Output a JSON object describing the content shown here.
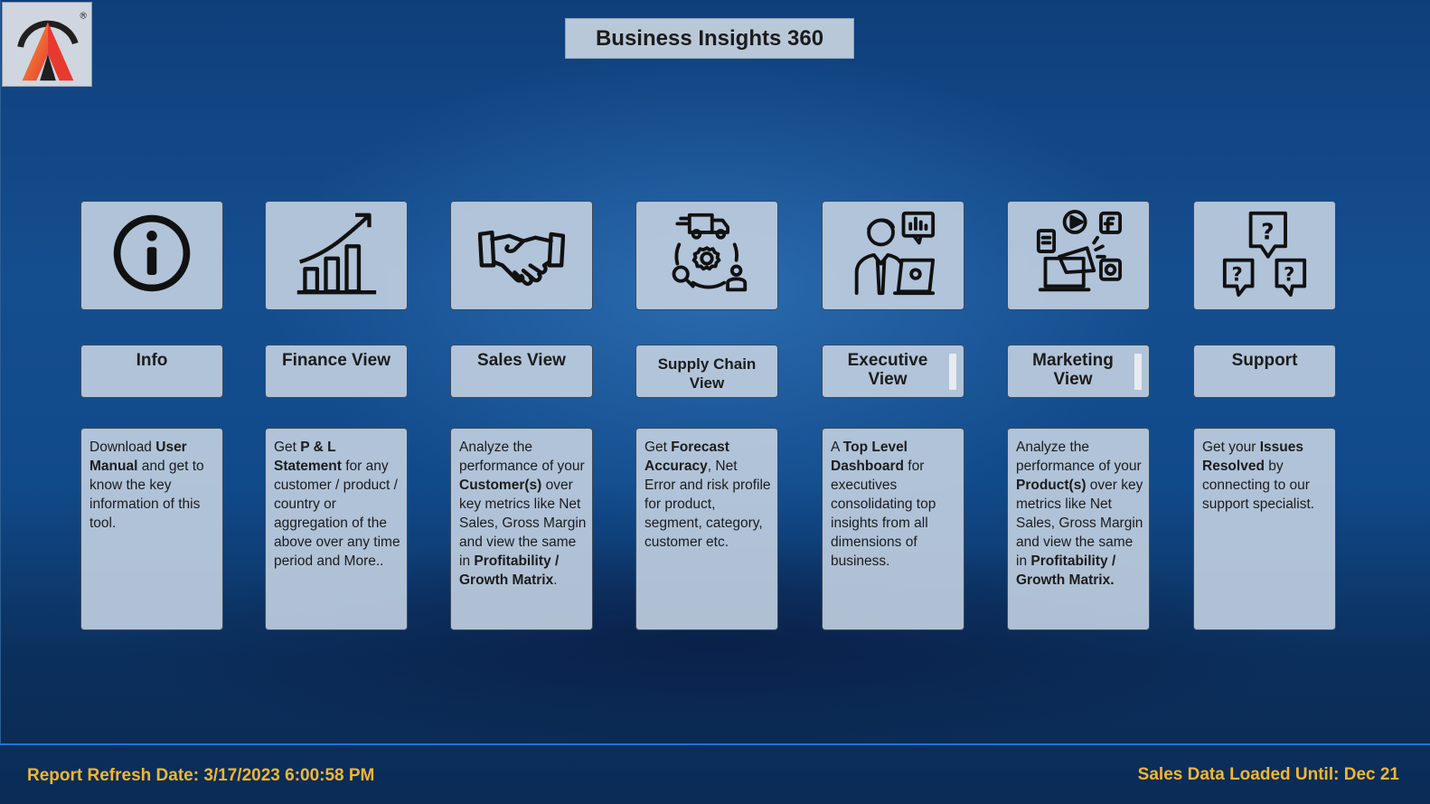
{
  "app": {
    "title": "Business Insights 360"
  },
  "tiles": [
    {
      "label": "Info",
      "icon": "info-icon",
      "description": [
        {
          "t": "Download ",
          "b": false
        },
        {
          "t": "User Manual",
          "b": true
        },
        {
          "t": " and get to know the key information of this tool.",
          "b": false
        }
      ]
    },
    {
      "label": "Finance View",
      "icon": "growth-chart-icon",
      "description": [
        {
          "t": "Get ",
          "b": false
        },
        {
          "t": "P & L Statement",
          "b": true
        },
        {
          "t": " for any customer / product / country or aggregation of the above over any time period and More..",
          "b": false
        }
      ]
    },
    {
      "label": "Sales View",
      "icon": "handshake-icon",
      "description": [
        {
          "t": "Analyze the performance of your ",
          "b": false
        },
        {
          "t": "Customer(s)",
          "b": true
        },
        {
          "t": " over key metrics like Net Sales, Gross Margin and view the same in ",
          "b": false
        },
        {
          "t": "Profitability / Growth Matrix",
          "b": true
        },
        {
          "t": ".",
          "b": false
        }
      ]
    },
    {
      "label": "Supply Chain View",
      "icon": "supply-chain-icon",
      "description": [
        {
          "t": "Get ",
          "b": false
        },
        {
          "t": "Forecast Accuracy",
          "b": true
        },
        {
          "t": ", Net Error and risk profile for product, segment, category, customer etc.",
          "b": false
        }
      ]
    },
    {
      "label": "Executive View",
      "icon": "executive-icon",
      "description": [
        {
          "t": "A ",
          "b": false
        },
        {
          "t": "Top Level Dashboard",
          "b": true
        },
        {
          "t": " for executives consolidating top insights from all dimensions of business.",
          "b": false
        }
      ]
    },
    {
      "label": "Marketing View",
      "icon": "marketing-icon",
      "description": [
        {
          "t": "Analyze the performance of your ",
          "b": false
        },
        {
          "t": "Product(s)",
          "b": true
        },
        {
          "t": " over key metrics like Net Sales, Gross Margin and view the same in ",
          "b": false
        },
        {
          "t": "Profitability / Growth Matrix.",
          "b": true
        }
      ]
    },
    {
      "label": "Support",
      "icon": "support-icon",
      "description": [
        {
          "t": "Get your ",
          "b": false
        },
        {
          "t": "Issues Resolved",
          "b": true
        },
        {
          "t": " by connecting to our support specialist.",
          "b": false
        }
      ]
    }
  ],
  "footer": {
    "refresh": "Report Refresh Date: 3/17/2023 6:00:58 PM",
    "loaded": "Sales Data Loaded Until: Dec 21"
  },
  "colors": {
    "accent": "#f2b632",
    "tile_bg": "#bccddf"
  }
}
